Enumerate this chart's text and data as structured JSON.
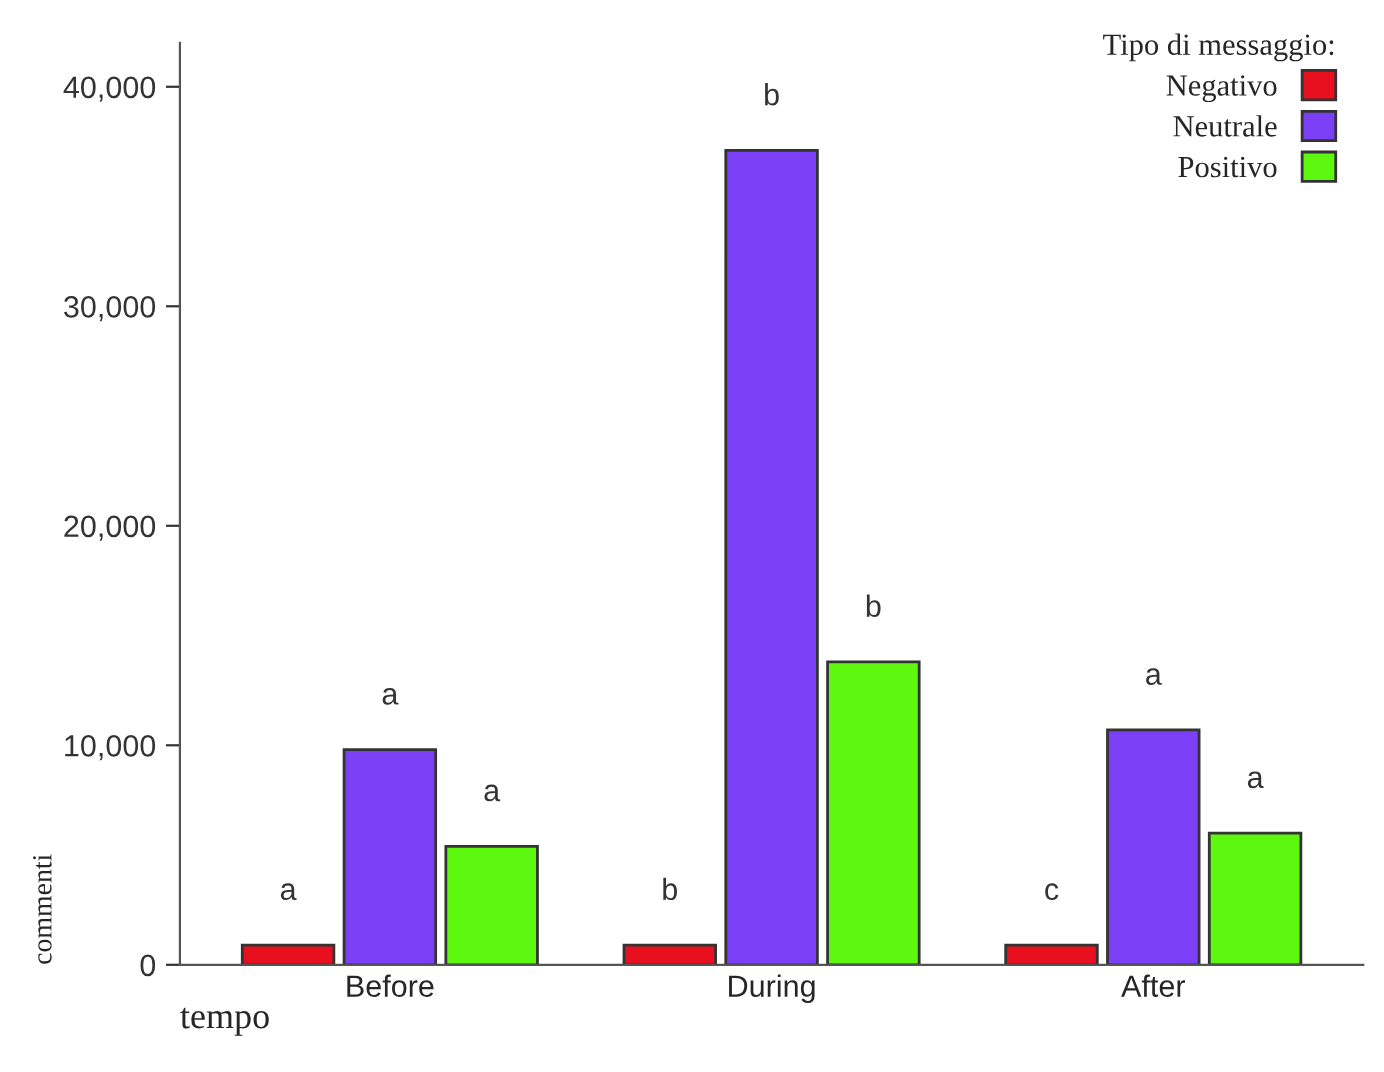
{
  "chart_data": {
    "type": "bar",
    "xlabel": "tempo",
    "ylabel": "commenti",
    "legend_title": "Tipo di messaggio:",
    "categories": [
      "Before",
      "During",
      "After"
    ],
    "series": [
      {
        "name": "Negativo",
        "color": "#e8101e",
        "values": [
          900,
          900,
          900
        ],
        "value_labels": [
          "a",
          "b",
          "c"
        ]
      },
      {
        "name": "Neutrale",
        "color": "#7b3ff5",
        "values": [
          9800,
          37100,
          10700
        ],
        "value_labels": [
          "a",
          "b",
          "a"
        ]
      },
      {
        "name": "Positivo",
        "color": "#5ef70f",
        "values": [
          5400,
          13800,
          6000
        ],
        "value_labels": [
          "a",
          "b",
          "a"
        ]
      }
    ],
    "ylim": [
      0,
      42000
    ],
    "yticks": [
      {
        "value": 0,
        "label": "0"
      },
      {
        "value": 10000,
        "label": "10,000"
      },
      {
        "value": 20000,
        "label": "20,000"
      },
      {
        "value": 30000,
        "label": "30,000"
      },
      {
        "value": 40000,
        "label": "40,000"
      }
    ],
    "legend": "top right",
    "grid": false
  }
}
